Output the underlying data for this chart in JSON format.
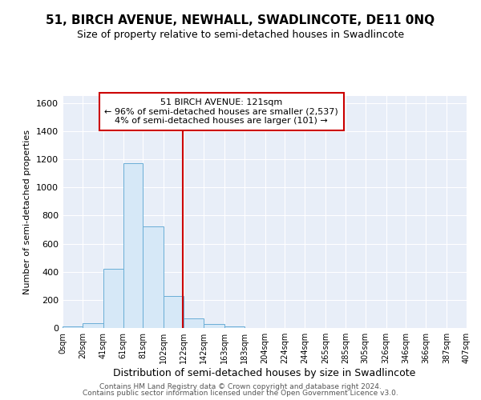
{
  "title": "51, BIRCH AVENUE, NEWHALL, SWADLINCOTE, DE11 0NQ",
  "subtitle": "Size of property relative to semi-detached houses in Swadlincote",
  "xlabel": "Distribution of semi-detached houses by size in Swadlincote",
  "ylabel": "Number of semi-detached properties",
  "footer1": "Contains HM Land Registry data © Crown copyright and database right 2024.",
  "footer2": "Contains public sector information licensed under the Open Government Licence v3.0.",
  "bin_edges": [
    0,
    20,
    41,
    61,
    81,
    102,
    122,
    142,
    163,
    183,
    204,
    224,
    244,
    265,
    285,
    305,
    326,
    346,
    366,
    387,
    407
  ],
  "bin_heights": [
    10,
    35,
    420,
    1170,
    720,
    230,
    70,
    30,
    10,
    0,
    0,
    0,
    0,
    0,
    0,
    0,
    0,
    0,
    0,
    0
  ],
  "property_size": 121,
  "annotation_line1": "51 BIRCH AVENUE: 121sqm",
  "annotation_line2": "← 96% of semi-detached houses are smaller (2,537)",
  "annotation_line3": "4% of semi-detached houses are larger (101) →",
  "bar_facecolor": "#d6e8f7",
  "bar_edgecolor": "#6aaed6",
  "vline_color": "#cc0000",
  "annotation_boxcolor": "white",
  "annotation_boxedge": "#cc0000",
  "bg_color": "#e8eef8",
  "grid_color": "white",
  "ylim": [
    0,
    1650
  ],
  "tick_labels": [
    "0sqm",
    "20sqm",
    "41sqm",
    "61sqm",
    "81sqm",
    "102sqm",
    "122sqm",
    "142sqm",
    "163sqm",
    "183sqm",
    "204sqm",
    "224sqm",
    "244sqm",
    "265sqm",
    "285sqm",
    "305sqm",
    "326sqm",
    "346sqm",
    "366sqm",
    "387sqm",
    "407sqm"
  ],
  "title_fontsize": 11,
  "subtitle_fontsize": 9,
  "ylabel_fontsize": 8,
  "xlabel_fontsize": 9
}
